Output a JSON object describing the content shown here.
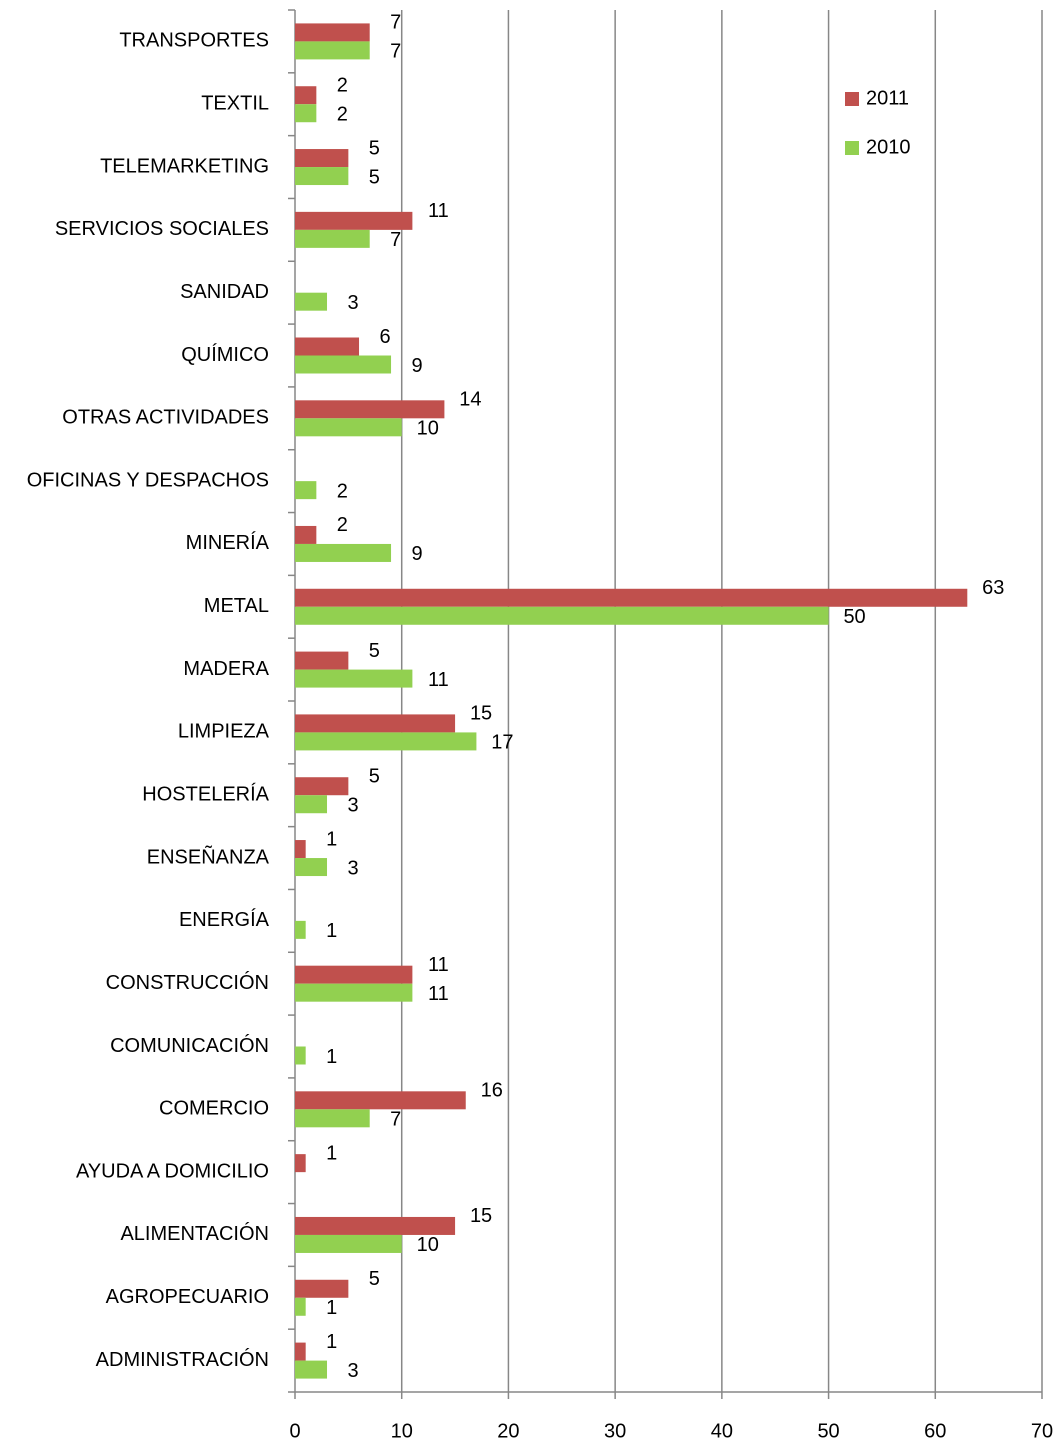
{
  "chart_data": {
    "type": "bar",
    "orientation": "horizontal",
    "categories": [
      "TRANSPORTES",
      "TEXTIL",
      "TELEMARKETING",
      "SERVICIOS SOCIALES",
      "SANIDAD",
      "QUÍMICO",
      "OTRAS ACTIVIDADES",
      "OFICINAS Y DESPACHOS",
      "MINERÍA",
      "METAL",
      "MADERA",
      "LIMPIEZA",
      "HOSTELERÍA",
      "ENSEÑANZA",
      "ENERGÍA",
      "CONSTRUCCIÓN",
      "COMUNICACIÓN",
      "COMERCIO",
      "AYUDA A DOMICILIO",
      "ALIMENTACIÓN",
      "AGROPECUARIO",
      "ADMINISTRACIÓN"
    ],
    "series": [
      {
        "name": "2011",
        "color": "#c0504d",
        "values": [
          7,
          2,
          5,
          11,
          null,
          6,
          14,
          null,
          2,
          63,
          5,
          15,
          5,
          1,
          null,
          11,
          null,
          16,
          1,
          15,
          5,
          1
        ]
      },
      {
        "name": "2010",
        "color": "#92d050",
        "values": [
          7,
          2,
          5,
          7,
          3,
          9,
          10,
          2,
          9,
          50,
          11,
          17,
          3,
          3,
          1,
          11,
          1,
          7,
          null,
          10,
          1,
          3
        ]
      }
    ],
    "xlim": [
      0,
      70
    ],
    "xticks": [
      0,
      10,
      20,
      30,
      40,
      50,
      60,
      70
    ],
    "grid": true,
    "legend": "upper right"
  }
}
